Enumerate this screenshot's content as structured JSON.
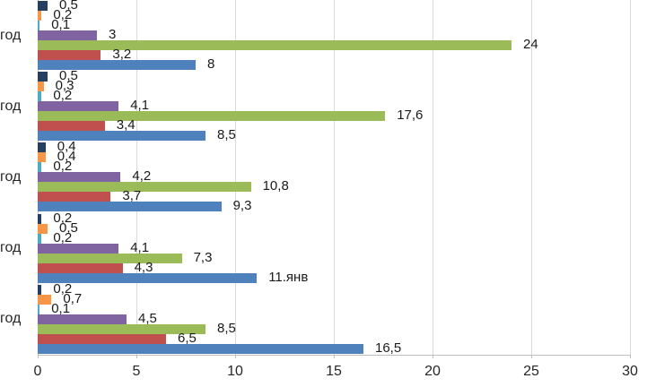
{
  "chart_data": {
    "type": "bar",
    "orientation": "horizontal",
    "title": "",
    "legend": "none",
    "grid": "vertical major gridlines every 5 units",
    "xlim": [
      0,
      30
    ],
    "x_ticks": [
      0,
      5,
      10,
      15,
      20,
      25,
      30
    ],
    "x_tick_labels": [
      "0",
      "5",
      "10",
      "15",
      "20",
      "25",
      "30"
    ],
    "categories": [
      "год",
      "год",
      "год",
      "год",
      "год"
    ],
    "series": [
      {
        "name": "series-darkblue",
        "color": "#243F60",
        "values": [
          0.5,
          0.5,
          0.4,
          0.2,
          0.2
        ],
        "labels": [
          "0,5",
          "0,5",
          "0,4",
          "0,2",
          "0,2"
        ]
      },
      {
        "name": "series-orange",
        "color": "#F79646",
        "values": [
          0.2,
          0.3,
          0.4,
          0.5,
          0.7
        ],
        "labels": [
          "0,2",
          "0,3",
          "0,4",
          "0,5",
          "0,7"
        ]
      },
      {
        "name": "series-cyan",
        "color": "#4BACC6",
        "values": [
          0.1,
          0.2,
          0.2,
          0.2,
          0.1
        ],
        "labels": [
          "0,1",
          "0,2",
          "0,2",
          "0,2",
          "0,1"
        ]
      },
      {
        "name": "series-purple",
        "color": "#8064A2",
        "values": [
          3,
          4.1,
          4.2,
          4.1,
          4.5
        ],
        "labels": [
          "3",
          "4,1",
          "4,2",
          "4,1",
          "4,5"
        ]
      },
      {
        "name": "series-green",
        "color": "#9BBB59",
        "values": [
          24,
          17.6,
          10.8,
          7.3,
          8.5
        ],
        "labels": [
          "24",
          "17,6",
          "10,8",
          "7,3",
          "8,5"
        ]
      },
      {
        "name": "series-red",
        "color": "#C0504D",
        "values": [
          3.2,
          3.4,
          3.7,
          4.3,
          6.5
        ],
        "labels": [
          "3,2",
          "3,4",
          "3,7",
          "4,3",
          "6,5"
        ]
      },
      {
        "name": "series-blue",
        "color": "#4F81BD",
        "values": [
          8,
          8.5,
          9.3,
          11.1,
          16.5
        ],
        "labels": [
          "8",
          "8,5",
          "9,3",
          "11.янв",
          "16,5"
        ]
      }
    ]
  }
}
